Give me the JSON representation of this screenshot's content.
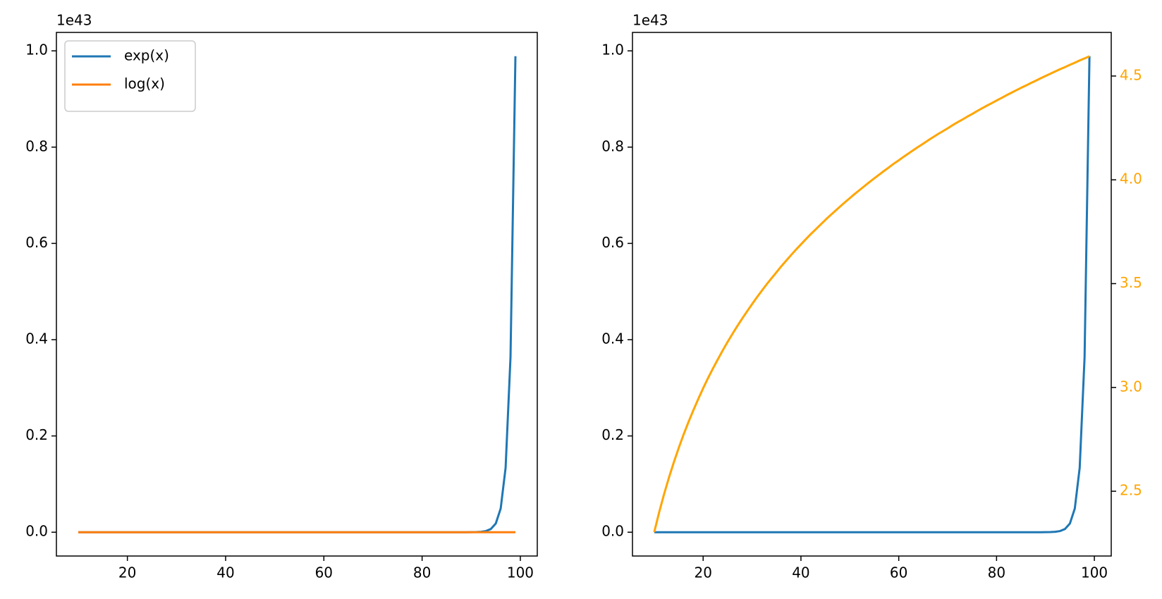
{
  "chart_data": [
    {
      "type": "line",
      "y_offset_label": "1e43",
      "x": [
        10,
        11,
        12,
        13,
        14,
        15,
        16,
        17,
        18,
        19,
        20,
        21,
        22,
        23,
        24,
        25,
        26,
        27,
        28,
        29,
        30,
        31,
        32,
        33,
        34,
        35,
        36,
        37,
        38,
        39,
        40,
        41,
        42,
        43,
        44,
        45,
        46,
        47,
        48,
        49,
        50,
        51,
        52,
        53,
        54,
        55,
        56,
        57,
        58,
        59,
        60,
        61,
        62,
        63,
        64,
        65,
        66,
        67,
        68,
        69,
        70,
        71,
        72,
        73,
        74,
        75,
        76,
        77,
        78,
        79,
        80,
        81,
        82,
        83,
        84,
        85,
        86,
        87,
        88,
        89,
        90,
        91,
        92,
        93,
        94,
        95,
        96,
        97,
        98,
        99
      ],
      "series": [
        {
          "name": "exp(x)",
          "color": "#1f77b4",
          "values": [
            22026.0,
            59874.0,
            162750.0,
            442410.0,
            1202600.0,
            3269000.0,
            8886100.0,
            24155000.0,
            65660000.0,
            178480000.0,
            485170000.0,
            1318800000.0,
            3584900000.0,
            9744800000.0,
            26489000000.0,
            72005000000.0,
            195730000000.0,
            532050000000.0,
            1446300000000.0,
            3931300000000.0,
            10686000000000.0,
            29049000000000.0,
            78963000000000.0,
            214640000000000.0,
            583460000000000.0,
            1586000000000000.0,
            4311200000000000.0,
            1.1719e+16,
            3.1856e+16,
            8.6593e+16,
            2.3539e+17,
            6.3984e+17,
            1.7393e+18,
            4.7278e+18,
            1.2852e+19,
            3.4934e+19,
            9.4961e+19,
            2.5813e+20,
            7.0167e+20,
            1.9073e+21,
            5.1847e+21,
            1.4093e+22,
            3.831e+22,
            1.0413e+23,
            2.8308e+23,
            7.6948e+23,
            2.0917e+24,
            5.6857e+24,
            1.5455e+25,
            4.2012e+25,
            1.142e+26,
            3.1043e+26,
            8.4383e+26,
            2.2938e+27,
            6.2351e+27,
            1.6949e+28,
            4.6072e+28,
            1.2524e+29,
            3.4042e+29,
            9.2538e+29,
            2.5154e+30,
            6.8376e+30,
            1.8587e+31,
            5.0524e+31,
            1.3734e+32,
            3.7332e+32,
            1.0148e+33,
            2.7585e+33,
            7.4984e+33,
            2.0383e+34,
            5.5406e+34,
            1.5061e+35,
            4.094e+35,
            1.1129e+36,
            3.0251e+36,
            8.223e+36,
            2.2352e+37,
            6.076e+37,
            1.6516e+38,
            4.4897e+38,
            1.2204e+39,
            3.3174e+39,
            9.0176e+39,
            2.4512e+40,
            6.6631e+40,
            1.8112e+41,
            4.9234e+41,
            1.3383e+42,
            3.6379e+42,
            9.8886e+42
          ]
        },
        {
          "name": "log(x)",
          "color": "#ff7f0e",
          "values": [
            2.303,
            2.398,
            2.485,
            2.565,
            2.639,
            2.708,
            2.773,
            2.833,
            2.89,
            2.944,
            2.996,
            3.045,
            3.091,
            3.135,
            3.178,
            3.219,
            3.258,
            3.296,
            3.332,
            3.367,
            3.401,
            3.434,
            3.466,
            3.497,
            3.526,
            3.555,
            3.584,
            3.611,
            3.638,
            3.664,
            3.689,
            3.714,
            3.738,
            3.761,
            3.784,
            3.807,
            3.829,
            3.85,
            3.871,
            3.892,
            3.912,
            3.932,
            3.951,
            3.97,
            3.989,
            4.007,
            4.025,
            4.043,
            4.06,
            4.078,
            4.094,
            4.111,
            4.127,
            4.143,
            4.159,
            4.174,
            4.19,
            4.205,
            4.22,
            4.234,
            4.248,
            4.263,
            4.277,
            4.29,
            4.304,
            4.317,
            4.331,
            4.344,
            4.357,
            4.369,
            4.382,
            4.394,
            4.407,
            4.419,
            4.431,
            4.443,
            4.454,
            4.466,
            4.477,
            4.489,
            4.5,
            4.511,
            4.522,
            4.533,
            4.543,
            4.554,
            4.564,
            4.575,
            4.585,
            4.595
          ]
        }
      ],
      "xlim": [
        5.55,
        103.45
      ],
      "xticks": [
        20,
        40,
        60,
        80,
        100
      ],
      "ylim": [
        -4.944e+41,
        1.0383e+43
      ],
      "yticks": [
        {
          "value": 0,
          "label": "0.0"
        },
        {
          "value": 2e+42,
          "label": "0.2"
        },
        {
          "value": 4e+42,
          "label": "0.4"
        },
        {
          "value": 6e+42,
          "label": "0.6"
        },
        {
          "value": 8e+42,
          "label": "0.8"
        },
        {
          "value": 1e+43,
          "label": "1.0"
        }
      ],
      "legend": "upper left"
    },
    {
      "type": "line",
      "y_offset_label": "1e43",
      "x": [
        10,
        11,
        12,
        13,
        14,
        15,
        16,
        17,
        18,
        19,
        20,
        21,
        22,
        23,
        24,
        25,
        26,
        27,
        28,
        29,
        30,
        31,
        32,
        33,
        34,
        35,
        36,
        37,
        38,
        39,
        40,
        41,
        42,
        43,
        44,
        45,
        46,
        47,
        48,
        49,
        50,
        51,
        52,
        53,
        54,
        55,
        56,
        57,
        58,
        59,
        60,
        61,
        62,
        63,
        64,
        65,
        66,
        67,
        68,
        69,
        70,
        71,
        72,
        73,
        74,
        75,
        76,
        77,
        78,
        79,
        80,
        81,
        82,
        83,
        84,
        85,
        86,
        87,
        88,
        89,
        90,
        91,
        92,
        93,
        94,
        95,
        96,
        97,
        98,
        99
      ],
      "series": [
        {
          "color": "#1f77b4",
          "values": [
            22026.0,
            59874.0,
            162750.0,
            442410.0,
            1202600.0,
            3269000.0,
            8886100.0,
            24155000.0,
            65660000.0,
            178480000.0,
            485170000.0,
            1318800000.0,
            3584900000.0,
            9744800000.0,
            26489000000.0,
            72005000000.0,
            195730000000.0,
            532050000000.0,
            1446300000000.0,
            3931300000000.0,
            10686000000000.0,
            29049000000000.0,
            78963000000000.0,
            214640000000000.0,
            583460000000000.0,
            1586000000000000.0,
            4311200000000000.0,
            1.1719e+16,
            3.1856e+16,
            8.6593e+16,
            2.3539e+17,
            6.3984e+17,
            1.7393e+18,
            4.7278e+18,
            1.2852e+19,
            3.4934e+19,
            9.4961e+19,
            2.5813e+20,
            7.0167e+20,
            1.9073e+21,
            5.1847e+21,
            1.4093e+22,
            3.831e+22,
            1.0413e+23,
            2.8308e+23,
            7.6948e+23,
            2.0917e+24,
            5.6857e+24,
            1.5455e+25,
            4.2012e+25,
            1.142e+26,
            3.1043e+26,
            8.4383e+26,
            2.2938e+27,
            6.2351e+27,
            1.6949e+28,
            4.6072e+28,
            1.2524e+29,
            3.4042e+29,
            9.2538e+29,
            2.5154e+30,
            6.8376e+30,
            1.8587e+31,
            5.0524e+31,
            1.3734e+32,
            3.7332e+32,
            1.0148e+33,
            2.7585e+33,
            7.4984e+33,
            2.0383e+34,
            5.5406e+34,
            1.5061e+35,
            4.094e+35,
            1.1129e+36,
            3.0251e+36,
            8.223e+36,
            2.2352e+37,
            6.076e+37,
            1.6516e+38,
            4.4897e+38,
            1.2204e+39,
            3.3174e+39,
            9.0176e+39,
            2.4512e+40,
            6.6631e+40,
            1.8112e+41,
            4.9234e+41,
            1.3383e+42,
            3.6379e+42,
            9.8886e+42
          ]
        },
        {
          "color": "orange",
          "axis": "y2",
          "values": [
            2.303,
            2.398,
            2.485,
            2.565,
            2.639,
            2.708,
            2.773,
            2.833,
            2.89,
            2.944,
            2.996,
            3.045,
            3.091,
            3.135,
            3.178,
            3.219,
            3.258,
            3.296,
            3.332,
            3.367,
            3.401,
            3.434,
            3.466,
            3.497,
            3.526,
            3.555,
            3.584,
            3.611,
            3.638,
            3.664,
            3.689,
            3.714,
            3.738,
            3.761,
            3.784,
            3.807,
            3.829,
            3.85,
            3.871,
            3.892,
            3.912,
            3.932,
            3.951,
            3.97,
            3.989,
            4.007,
            4.025,
            4.043,
            4.06,
            4.078,
            4.094,
            4.111,
            4.127,
            4.143,
            4.159,
            4.174,
            4.19,
            4.205,
            4.22,
            4.234,
            4.248,
            4.263,
            4.277,
            4.29,
            4.304,
            4.317,
            4.331,
            4.344,
            4.357,
            4.369,
            4.382,
            4.394,
            4.407,
            4.419,
            4.431,
            4.443,
            4.454,
            4.466,
            4.477,
            4.489,
            4.5,
            4.511,
            4.522,
            4.533,
            4.543,
            4.554,
            4.564,
            4.575,
            4.585,
            4.595
          ]
        }
      ],
      "xlim": [
        5.55,
        103.45
      ],
      "xticks": [
        20,
        40,
        60,
        80,
        100
      ],
      "ylim": [
        -4.944e+41,
        1.0383e+43
      ],
      "yticks": [
        {
          "value": 0,
          "label": "0.0"
        },
        {
          "value": 2e+42,
          "label": "0.2"
        },
        {
          "value": 4e+42,
          "label": "0.4"
        },
        {
          "value": 6e+42,
          "label": "0.6"
        },
        {
          "value": 8e+42,
          "label": "0.8"
        },
        {
          "value": 1e+43,
          "label": "1.0"
        }
      ],
      "y2lim": [
        2.188,
        4.71
      ],
      "y2ticks": [
        2.5,
        {
          "value": 3,
          "label": "3.0"
        },
        3.5,
        {
          "value": 4,
          "label": "4.0"
        },
        4.5
      ],
      "y2_color": "orange"
    }
  ]
}
